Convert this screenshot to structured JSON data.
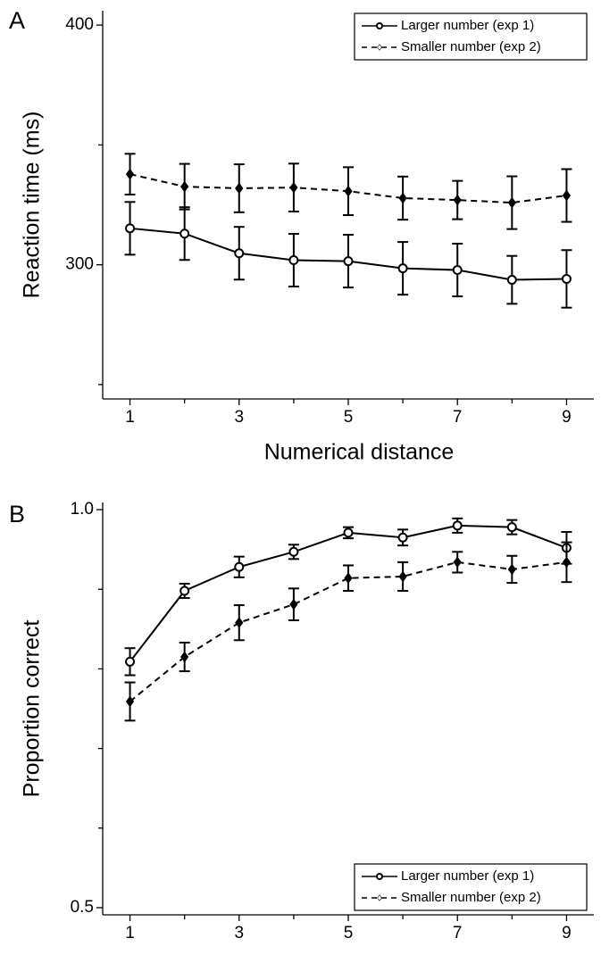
{
  "chart_data": [
    {
      "type": "line",
      "panel_label": "A",
      "xlabel": "Numerical distance",
      "ylabel": "Reaction time (ms)",
      "x": [
        1,
        2,
        3,
        4,
        5,
        6,
        7,
        8,
        9
      ],
      "xlim": [
        0.5,
        9.5
      ],
      "xticks": [
        1,
        3,
        5,
        7,
        9
      ],
      "xminor": [
        2,
        4,
        6,
        8
      ],
      "ylim": [
        244,
        406
      ],
      "yticks": [
        300,
        400
      ],
      "yminor": [
        250,
        350
      ],
      "legend": "upper right",
      "series": [
        {
          "name": "Larger number (exp 1)",
          "color": "#000000",
          "line_style": "solid",
          "marker": "circle",
          "values": [
            315.2,
            313,
            304.8,
            301.9,
            301.5,
            298.5,
            297.8,
            293.7,
            294.1
          ],
          "errors": [
            11,
            11,
            11,
            11,
            11,
            11,
            11,
            10,
            12
          ]
        },
        {
          "name": "Smaller number (exp 2)",
          "color": "#000000",
          "line_style": "dashed",
          "marker": "diamond",
          "values": [
            337.8,
            332.6,
            331.9,
            332.2,
            330.7,
            327.8,
            327,
            325.9,
            328.9
          ],
          "errors": [
            8.5,
            9.5,
            10,
            10,
            10,
            9,
            8,
            11,
            11
          ]
        }
      ]
    },
    {
      "type": "line",
      "panel_label": "B",
      "xlabel": "Numerical distance",
      "ylabel": "Proportion correct",
      "x": [
        1,
        2,
        3,
        4,
        5,
        6,
        7,
        8,
        9
      ],
      "xlim": [
        0.5,
        9.5
      ],
      "xticks": [
        1,
        3,
        5,
        7,
        9
      ],
      "xminor": [
        2,
        4,
        6,
        8
      ],
      "ylim": [
        0.491,
        1.009
      ],
      "yticks": [
        {
          "value": 0.5,
          "label": "0.5"
        },
        {
          "value": 1,
          "label": "1.0"
        }
      ],
      "yminor": [
        0.6,
        0.7,
        0.8,
        0.9
      ],
      "legend": "lower right",
      "series": [
        {
          "name": "Larger number (exp 1)",
          "color": "#000000",
          "line_style": "solid",
          "marker": "circle",
          "values": [
            0.809,
            0.898,
            0.928,
            0.947,
            0.971,
            0.965,
            0.98,
            0.978,
            0.952
          ],
          "errors": [
            0.017,
            0.009,
            0.013,
            0.009,
            0.007,
            0.01,
            0.009,
            0.009,
            0.02
          ]
        },
        {
          "name": "Smaller number (exp 2)",
          "color": "#000000",
          "line_style": "dashed",
          "marker": "diamond",
          "values": [
            0.759,
            0.815,
            0.858,
            0.881,
            0.914,
            0.916,
            0.934,
            0.925,
            0.934
          ],
          "errors": [
            0.024,
            0.018,
            0.022,
            0.02,
            0.016,
            0.018,
            0.013,
            0.017,
            0.025
          ]
        }
      ]
    }
  ]
}
